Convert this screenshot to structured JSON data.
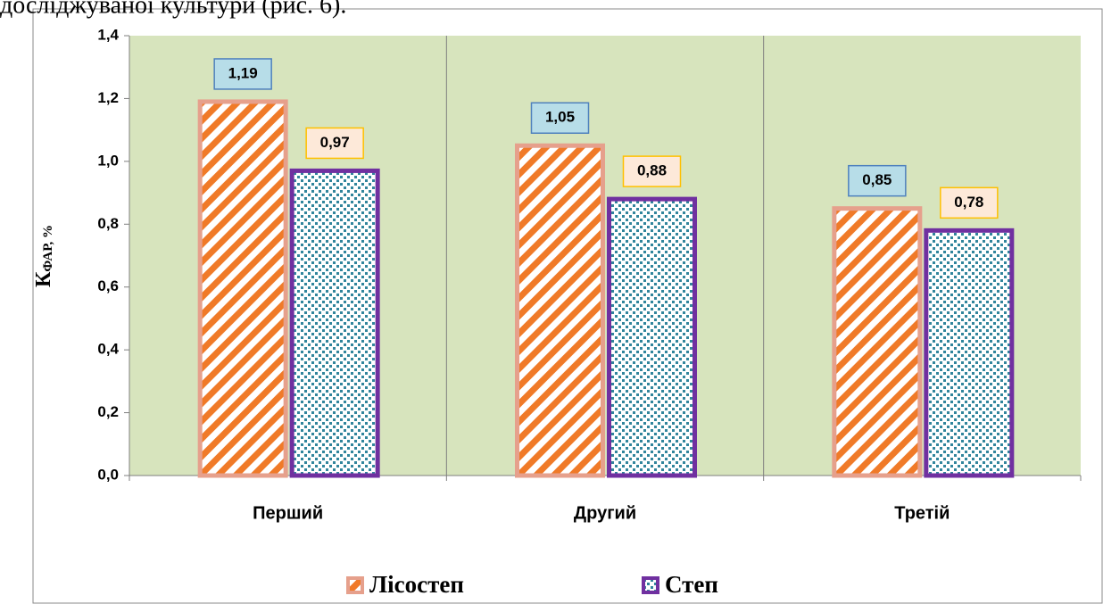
{
  "page_text": "досліджуваної культури (рис. 6).",
  "chart_data": {
    "type": "bar",
    "y_label": {
      "main": "К",
      "sub": "ФАР, %"
    },
    "categories": [
      "Перший",
      "Другий",
      "Третій"
    ],
    "series": [
      {
        "name": "Лісостеп",
        "color": "#f07a28",
        "values": [
          1.19,
          1.05,
          0.85
        ],
        "value_labels": [
          "1,19",
          "1,05",
          "0,85"
        ]
      },
      {
        "name": "Степ",
        "color": "#7030a0",
        "values": [
          0.97,
          0.88,
          0.78
        ],
        "value_labels": [
          "0,97",
          "0,88",
          "0,78"
        ]
      }
    ],
    "ylim": [
      0,
      1.4
    ],
    "yticks": [
      {
        "value": 0,
        "label": "0,0"
      },
      {
        "value": 0.2,
        "label": "0,2"
      },
      {
        "value": 0.4,
        "label": "0,4"
      },
      {
        "value": 0.6,
        "label": "0,6"
      },
      {
        "value": 0.8,
        "label": "0,8"
      },
      {
        "value": 1.0,
        "label": "1,0"
      },
      {
        "value": 1.2,
        "label": "1,2"
      },
      {
        "value": 1.4,
        "label": "1,4"
      }
    ],
    "legend": "bottom"
  }
}
